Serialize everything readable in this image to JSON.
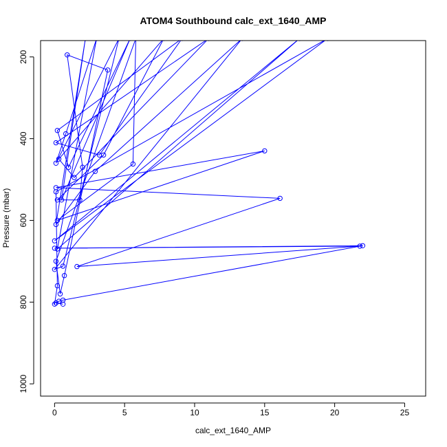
{
  "chart_data": {
    "type": "line",
    "title": "ATOM4 Southbound calc_ext_1640_AMP",
    "xlabel": "calc_ext_1640_AMP",
    "ylabel": "Pressure (mbar)",
    "xlim": [
      -1,
      26.5
    ],
    "ylim": [
      1030,
      160
    ],
    "y_reversed": true,
    "x_ticks": [
      "0",
      "5",
      "10",
      "15",
      "20",
      "25"
    ],
    "x_tick_values": [
      0,
      5,
      10,
      15,
      20,
      25
    ],
    "y_ticks": [
      "200",
      "400",
      "600",
      "800",
      "1000"
    ],
    "y_tick_values": [
      200,
      400,
      600,
      800,
      1000
    ],
    "grid": false,
    "series": [
      {
        "color": "#0000ff",
        "line": true,
        "markers": "open-circle",
        "points": [
          {
            "x": 0.6,
            "y": 805
          },
          {
            "x": 0.1,
            "y": 802
          },
          {
            "x": 0.3,
            "y": 798
          },
          {
            "x": 0.6,
            "y": 795
          },
          {
            "x": 22.0,
            "y": 662
          },
          {
            "x": 0.0,
            "y": 668
          },
          {
            "x": 21.8,
            "y": 663
          },
          {
            "x": 1.6,
            "y": 713
          },
          {
            "x": 16.1,
            "y": 546
          },
          {
            "x": 0.1,
            "y": 520
          },
          {
            "x": 15.0,
            "y": 430
          },
          {
            "x": 0.2,
            "y": 600
          },
          {
            "x": 5.6,
            "y": 462
          },
          {
            "x": 5.8,
            "y": 155
          },
          {
            "x": 0.1,
            "y": 700
          },
          {
            "x": 0.4,
            "y": 780
          },
          {
            "x": 0.7,
            "y": 735
          },
          {
            "x": 3.8,
            "y": 232
          },
          {
            "x": 0.9,
            "y": 195
          },
          {
            "x": 2.0,
            "y": 470
          },
          {
            "x": 1.8,
            "y": 550
          },
          {
            "x": 0.2,
            "y": 550
          },
          {
            "x": 3.5,
            "y": 440
          },
          {
            "x": 7.8,
            "y": 155
          },
          {
            "x": 0.3,
            "y": 450
          },
          {
            "x": 1.4,
            "y": 495
          },
          {
            "x": 11.0,
            "y": 155
          },
          {
            "x": 0.1,
            "y": 410
          },
          {
            "x": 3.2,
            "y": 440
          },
          {
            "x": 9.1,
            "y": 155
          },
          {
            "x": 0.2,
            "y": 380
          },
          {
            "x": 1.0,
            "y": 470
          },
          {
            "x": 5.4,
            "y": 155
          },
          {
            "x": 0.5,
            "y": 550
          },
          {
            "x": 2.2,
            "y": 155
          },
          {
            "x": 0.1,
            "y": 610
          },
          {
            "x": 2.9,
            "y": 480
          },
          {
            "x": 13.4,
            "y": 155
          },
          {
            "x": 0.0,
            "y": 720
          },
          {
            "x": 0.6,
            "y": 712
          },
          {
            "x": 4.6,
            "y": 155
          },
          {
            "x": 0.1,
            "y": 460
          },
          {
            "x": 0.8,
            "y": 388
          },
          {
            "x": 3.0,
            "y": 155
          },
          {
            "x": 0.2,
            "y": 670
          },
          {
            "x": 17.5,
            "y": 155
          },
          {
            "x": 0.0,
            "y": 650
          },
          {
            "x": 19.5,
            "y": 155
          },
          {
            "x": 0.1,
            "y": 530
          },
          {
            "x": 0.2,
            "y": 760
          },
          {
            "x": 0.0,
            "y": 805
          }
        ]
      }
    ]
  }
}
